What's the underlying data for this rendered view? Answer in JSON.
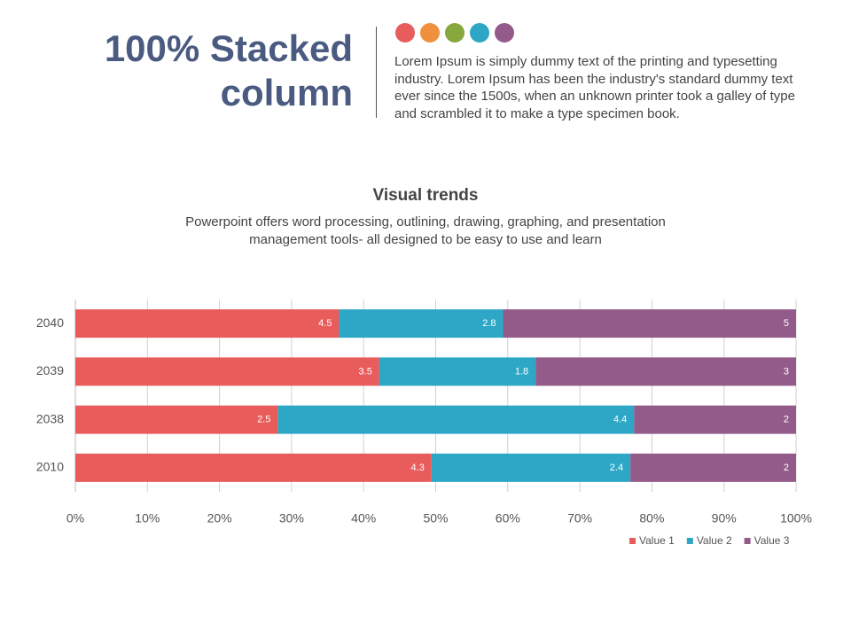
{
  "header": {
    "title": "100% Stacked column",
    "description": "Lorem Ipsum is simply dummy text of the printing and typesetting industry. Lorem Ipsum has been the industry's standard dummy text ever since the 1500s, when an unknown printer took a galley of type and scrambled it to make a type specimen book."
  },
  "chart_data": {
    "type": "stacked_bar_100",
    "orientation": "horizontal",
    "title": "Visual trends",
    "subtitle": "Powerpoint offers word processing, outlining, drawing, graphing, and presentation management tools- all designed to be easy to use and learn",
    "categories": [
      "2010",
      "2038",
      "2039",
      "2040"
    ],
    "series": [
      {
        "name": "Value 1",
        "color": "#e85c5c",
        "values": [
          4.3,
          2.5,
          3.5,
          4.5
        ]
      },
      {
        "name": "Value 2",
        "color": "#2ea7c6",
        "values": [
          2.4,
          4.4,
          1.8,
          2.8
        ]
      },
      {
        "name": "Value 3",
        "color": "#935b8a",
        "values": [
          2,
          2,
          3,
          5
        ]
      }
    ],
    "xlim": [
      0,
      100
    ],
    "xticks": [
      {
        "value": 0,
        "label": "0%"
      },
      {
        "value": 10,
        "label": "10%"
      },
      {
        "value": 20,
        "label": "20%"
      },
      {
        "value": 30,
        "label": "30%"
      },
      {
        "value": 40,
        "label": "40%"
      },
      {
        "value": 50,
        "label": "50%"
      },
      {
        "value": 60,
        "label": "60%"
      },
      {
        "value": 70,
        "label": "70%"
      },
      {
        "value": 80,
        "label": "80%"
      },
      {
        "value": 90,
        "label": "90%"
      },
      {
        "value": 100,
        "label": "100%"
      }
    ],
    "grid": true,
    "legend": "bottom-right"
  }
}
